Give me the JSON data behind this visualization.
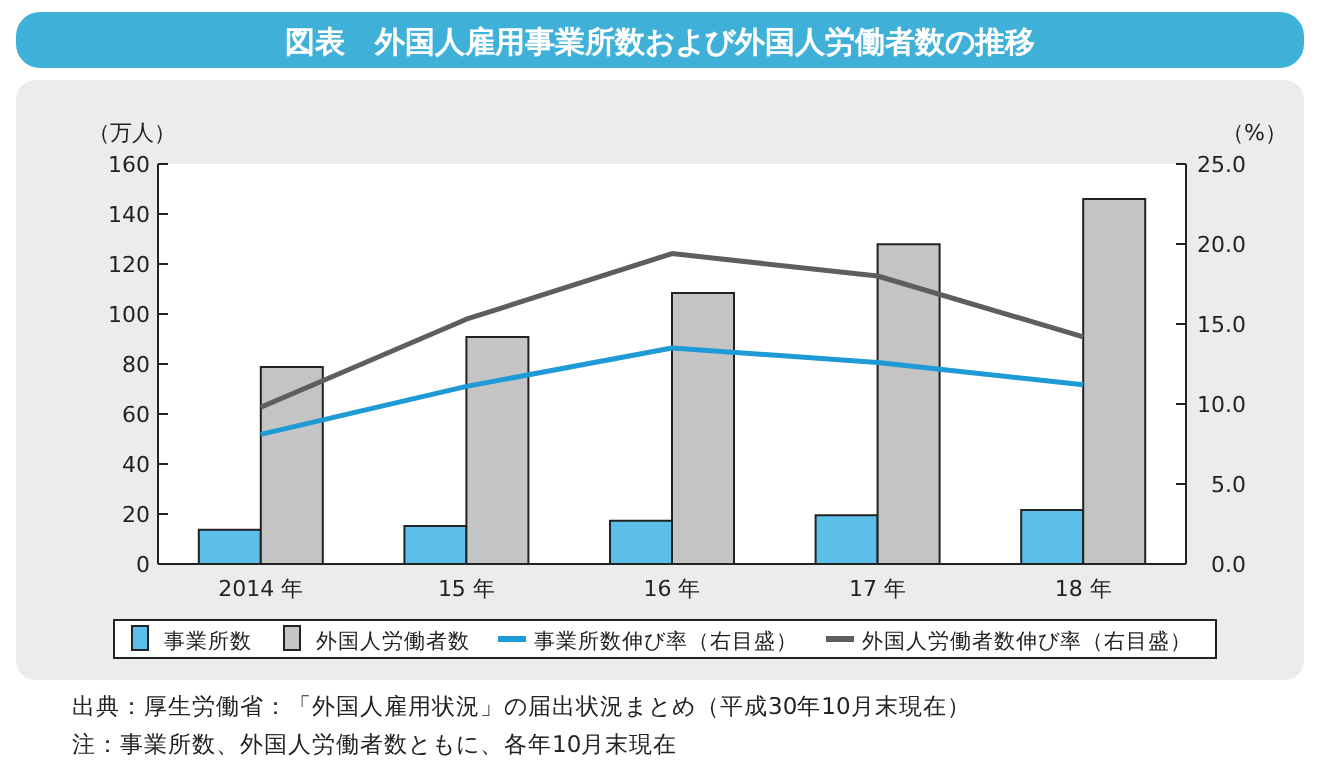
{
  "chart_data": {
    "type": "bar",
    "title": "図表　外国人雇用事業所数および外国人労働者数の推移",
    "ylabel": "（万人）",
    "y2label": "（%）",
    "categories": [
      "2014 年",
      "15 年",
      "16 年",
      "17 年",
      "18 年"
    ],
    "series": [
      {
        "name": "事業所数",
        "color": "#5cbfe9",
        "values": [
          13.7,
          15.2,
          17.3,
          19.5,
          21.6
        ]
      },
      {
        "name": "外国人労働者数",
        "color": "#c4c4c4",
        "values": [
          78.8,
          90.8,
          108.4,
          127.9,
          146.0
        ]
      },
      {
        "name": "事業所数伸び率（右目盛）",
        "type": "line",
        "axis": "y2",
        "color": "#1e9ad6",
        "values": [
          8.1,
          11.1,
          13.5,
          12.6,
          11.2
        ]
      },
      {
        "name": "外国人労働者数伸び率（右目盛）",
        "type": "line",
        "axis": "y2",
        "color": "#5e5e5e",
        "values": [
          9.8,
          15.3,
          19.4,
          18.0,
          14.2
        ]
      }
    ],
    "ylim": [
      0,
      160
    ],
    "yticks": [
      0,
      20,
      40,
      60,
      80,
      100,
      120,
      140,
      160
    ],
    "y2lim": [
      0,
      25
    ],
    "y2ticks": [
      {
        "value": 0,
        "label": "0.0"
      },
      {
        "value": 5,
        "label": "5.0"
      },
      {
        "value": 10,
        "label": "10.0"
      },
      {
        "value": 15,
        "label": "15.0"
      },
      {
        "value": 20,
        "label": "20.0"
      },
      {
        "value": 25,
        "label": "25.0"
      }
    ],
    "legend": "bottom",
    "grid": false,
    "annotations": [
      "出典：厚生労働省：「外国人雇用状況」の届出状況まとめ（平成30年10月末現在）",
      "注：事業所数、外国人労働者数ともに、各年10月末現在"
    ]
  }
}
